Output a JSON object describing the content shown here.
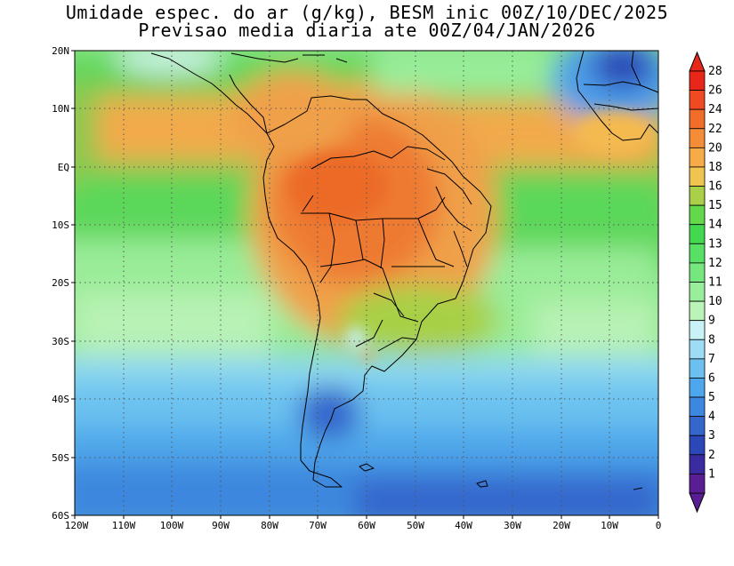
{
  "title_line1": "Umidade espec. do ar (g/kg), BESM inic 00Z/10/DEC/2025",
  "title_line2": "Previsao media diaria ate 00Z/04/JAN/2026",
  "lat_labels": [
    "20N",
    "10N",
    "EQ",
    "10S",
    "20S",
    "30S",
    "40S",
    "50S",
    "60S"
  ],
  "lon_labels": [
    "120W",
    "110W",
    "100W",
    "90W",
    "80W",
    "70W",
    "60W",
    "50W",
    "40W",
    "30W",
    "20W",
    "10W",
    "0"
  ],
  "colorbar": {
    "labels": [
      "28",
      "26",
      "24",
      "22",
      "20",
      "18",
      "16",
      "15",
      "14",
      "13",
      "12",
      "11",
      "10",
      "9",
      "8",
      "7",
      "6",
      "5",
      "4",
      "3",
      "2",
      "1"
    ],
    "colors": [
      "#e8261a",
      "#f04a22",
      "#f26c2a",
      "#f48c38",
      "#f6aa48",
      "#f0c450",
      "#a9d048",
      "#63d84a",
      "#44d850",
      "#58e064",
      "#76e67e",
      "#98ee9a",
      "#baf4b8",
      "#c8f2f6",
      "#9edcf6",
      "#6cc0f0",
      "#4ea6ec",
      "#3c88e0",
      "#3466cc",
      "#2c48b8",
      "#3a2ca0",
      "#5a1e94"
    ]
  }
}
